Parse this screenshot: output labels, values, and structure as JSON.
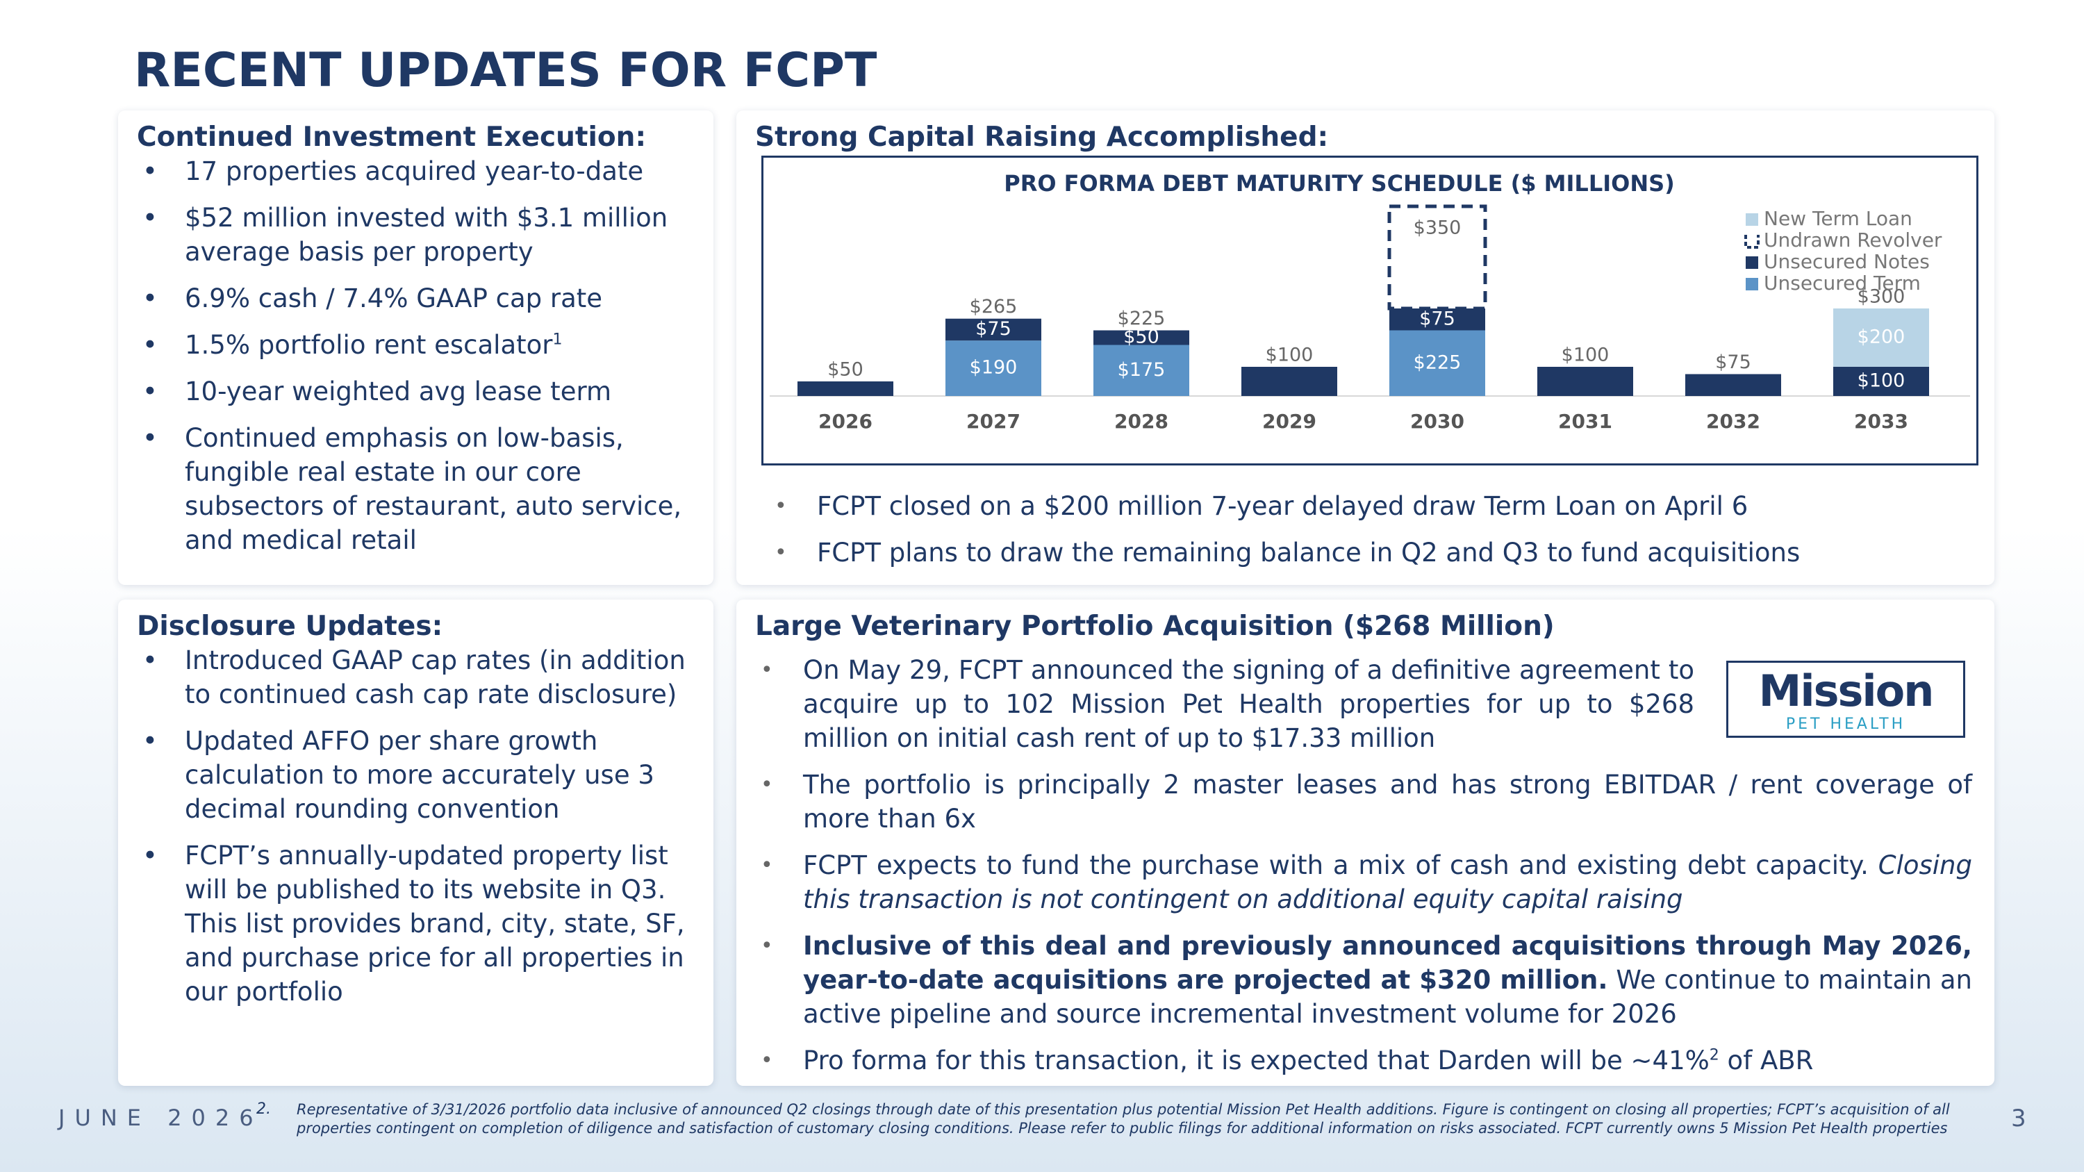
{
  "title": "RECENT UPDATES FOR FCPT",
  "investment": {
    "heading": "Continued Investment Execution:",
    "bullets": [
      "17 properties acquired year-to-date",
      "$52 million invested with $3.1 million average basis per property",
      "6.9% cash / 7.4% GAAP cap rate",
      [
        {
          "text": "1.5% portfolio rent escalator"
        },
        {
          "text": "1",
          "style": "sup"
        }
      ],
      "10-year weighted avg lease term",
      "Continued emphasis on low-basis, fungible real estate in our core subsectors of restaurant, auto service, and medical retail"
    ]
  },
  "capital": {
    "heading": "Strong Capital Raising Accomplished:",
    "bullets": [
      "FCPT closed on a $200 million 7-year delayed draw Term Loan on April 6",
      "FCPT plans to draw the remaining balance in Q2 and Q3 to fund acquisitions"
    ]
  },
  "chart_data": {
    "type": "stacked-bar",
    "title": "PRO FORMA DEBT MATURITY SCHEDULE ($ MILLIONS)",
    "categories": [
      "2026",
      "2027",
      "2028",
      "2029",
      "2030",
      "2031",
      "2032",
      "2033"
    ],
    "ylim": [
      0,
      700
    ],
    "series": [
      {
        "name": "New Term Loan",
        "color": "#b8d4e6",
        "values": [
          null,
          null,
          null,
          null,
          null,
          null,
          null,
          200
        ],
        "value_labels": [
          null,
          null,
          null,
          null,
          null,
          null,
          null,
          "$200"
        ]
      },
      {
        "name": "Undrawn Revolver",
        "color": "#1f3864",
        "outline": true,
        "values": [
          null,
          null,
          null,
          null,
          350,
          null,
          null,
          null
        ],
        "value_labels": [
          null,
          null,
          null,
          null,
          "$350",
          null,
          null,
          null
        ]
      },
      {
        "name": "Unsecured Notes",
        "color": "#1f3864",
        "values": [
          50,
          75,
          50,
          100,
          75,
          100,
          75,
          100
        ],
        "value_labels": [
          "$50",
          "$75",
          "$50",
          "$100",
          "$75",
          "$100",
          "$75",
          "$100"
        ]
      },
      {
        "name": "Unsecured Term",
        "color": "#5b93c7",
        "values": [
          null,
          190,
          175,
          null,
          225,
          null,
          null,
          null
        ],
        "value_labels": [
          null,
          "$190",
          "$175",
          null,
          "$225",
          null,
          null,
          null
        ]
      }
    ],
    "totals": [
      null,
      265,
      225,
      null,
      null,
      null,
      null,
      300
    ],
    "total_labels": [
      null,
      "$265",
      "$225",
      null,
      null,
      null,
      null,
      "$300"
    ]
  },
  "disclosure": {
    "heading": "Disclosure Updates:",
    "bullets": [
      "Introduced GAAP cap rates (in addition to continued cash cap rate disclosure)",
      "Updated AFFO per share growth calculation to more accurately use 3 decimal rounding convention",
      "FCPT’s annually-updated property list will be published to its website in Q3. This list provides brand, city, state, SF, and purchase price for all properties in our portfolio"
    ]
  },
  "veterinary": {
    "heading": "Large Veterinary Portfolio Acquisition ($268 Million)",
    "logo": {
      "name": "Mission",
      "sub": "PET HEALTH"
    },
    "bullets": [
      "On May 29, FCPT announced the signing of a definitive agreement to acquire up to 102 Mission Pet Health properties for up to $268 million on initial cash rent of up to $17.33 million",
      "The portfolio is principally 2 master leases and has strong EBITDAR / rent coverage of more than 6x",
      [
        {
          "text": "FCPT expects to fund the purchase with a mix of cash and existing debt capacity. "
        },
        {
          "text": "Closing this transaction is not contingent on additional equity capital raising",
          "style": "italic"
        }
      ],
      [
        {
          "text": "Inclusive of this deal and previously announced acquisitions through May 2026, year-to-date acquisitions are projected at $320 million.",
          "style": "bold"
        },
        {
          "text": " We continue to maintain an active pipeline and source incremental investment volume for 2026"
        }
      ],
      [
        {
          "text": "Pro forma for this transaction, it is expected that Darden will be ~41%"
        },
        {
          "text": "2",
          "style": "sup"
        },
        {
          "text": " of ABR"
        }
      ]
    ]
  },
  "footer": {
    "date": "JUNE 2026",
    "note_marker": "2.",
    "note": "Representative of 3/31/2026 portfolio data inclusive of announced Q2 closings through date of this presentation plus potential Mission Pet Health additions. Figure is contingent on closing all properties; FCPT’s acquisition of all properties contingent on completion of diligence and satisfaction of customary closing conditions. Please refer to public filings for additional information on risks associated. FCPT currently owns 5 Mission Pet Health properties",
    "page": "3"
  }
}
